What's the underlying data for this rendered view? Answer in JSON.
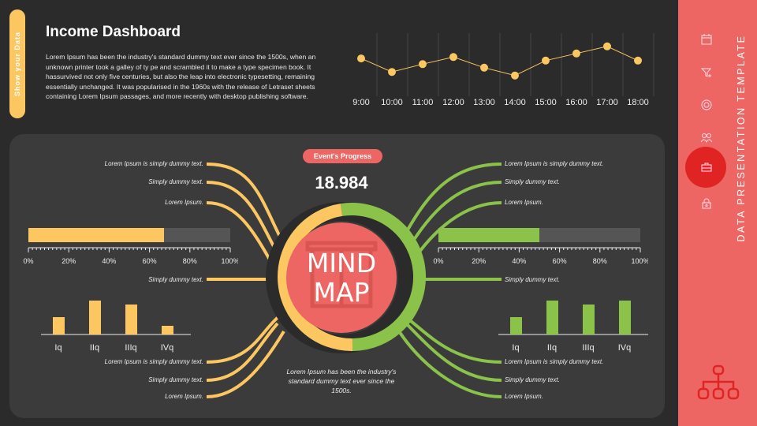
{
  "side_tab": "Show your Data",
  "title": "Income Dashboard",
  "description": "Lorem Ipsum has been the industry's standard dummy text ever since the 1500s, when an unknown printer took a galley of ty pe and scrambled it to make a type specimen book. It hassurvived not only five centuries, but also the leap into electronic typesetting, remaining essentially  unchanged. It was popularised in the 1960s with the release of Letraset sheets containing Lorem Ipsum passages, and more recently with desktop publishing software.",
  "chart_data": [
    {
      "type": "line",
      "categories": [
        "9:00",
        "10:00",
        "11:00",
        "12:00",
        "13:00",
        "14:00",
        "15:00",
        "16:00",
        "17:00",
        "18:00"
      ],
      "values": [
        51,
        32,
        43,
        53,
        38,
        27,
        48,
        58,
        68,
        48
      ],
      "ylim": [
        0,
        100
      ],
      "grid": "vertical",
      "color": "#fcc661"
    },
    {
      "type": "bar",
      "categories": [
        "Iq",
        "IIq",
        "IIIq",
        "IVq"
      ],
      "values": [
        22,
        43,
        38,
        11
      ],
      "color": "#fcc661"
    },
    {
      "type": "bar",
      "categories": [
        "Iq",
        "IIq",
        "IIIq",
        "IVq"
      ],
      "values": [
        22,
        43,
        38,
        43
      ],
      "color": "#8bc34a"
    }
  ],
  "progress": {
    "badge": "Event's Progress",
    "value": "18.984",
    "center": "MIND MAP",
    "center_l1": "MIND",
    "center_l2": "MAP",
    "caption": "Lorem Ipsum has been the industry's standard dummy text ever since the 1500s."
  },
  "left": {
    "top_labels": [
      "Lorem Ipsum is simply dummy text.",
      "Simply dummy text.",
      "Lorem Ipsum."
    ],
    "mid_label": "Simply dummy text.",
    "bottom_labels": [
      "Lorem Ipsum is simply dummy text.",
      "Simply dummy text.",
      "Lorem Ipsum."
    ],
    "progress_pct": 67
  },
  "right": {
    "top_labels": [
      "Lorem Ipsum is simply dummy text.",
      "Simply dummy text.",
      "Lorem Ipsum."
    ],
    "mid_label": "Simply dummy text.",
    "bottom_labels": [
      "Lorem Ipsum is simply dummy text.",
      "Simply dummy text.",
      "Lorem Ipsum."
    ],
    "progress_pct": 50
  },
  "scale_ticks": [
    "0%",
    "20%",
    "40%",
    "60%",
    "80%",
    "100%"
  ],
  "colors": {
    "yellow": "#fcc661",
    "green": "#8bc34a",
    "red": "#ee6663",
    "active": "#e02424"
  },
  "sidebar": {
    "title": "DATA PRESENTATION TEMPLATE",
    "icons": [
      "calendar-icon",
      "filter-add-icon",
      "gear-icon",
      "users-icon",
      "briefcase-icon",
      "lock-icon"
    ],
    "active_index": 4,
    "bottom_icon": "org-chart-icon"
  }
}
